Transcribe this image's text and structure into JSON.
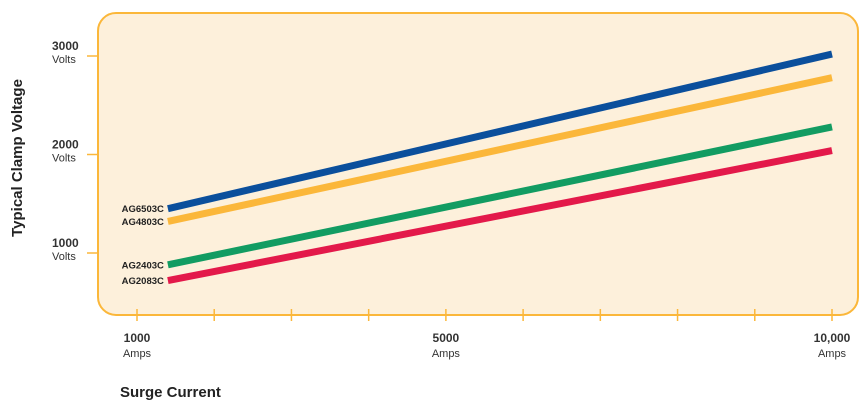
{
  "chart_data": {
    "type": "line",
    "xlabel": "Surge Current",
    "ylabel": "Typical Clamp Voltage",
    "xlim": [
      1000,
      10000
    ],
    "ylim": [
      500,
      3500
    ],
    "x_ticks": [
      {
        "value": 1000,
        "line1": "1000",
        "line2": "Amps"
      },
      {
        "value": 5000,
        "line1": "5000",
        "line2": "Amps"
      },
      {
        "value": 10000,
        "line1": "10,000",
        "line2": "Amps"
      }
    ],
    "x_minor_ticks": [
      2000,
      3000,
      4000,
      6000,
      7000,
      8000,
      9000
    ],
    "y_ticks": [
      {
        "value": 1000,
        "line1": "1000",
        "line2": "Volts"
      },
      {
        "value": 2000,
        "line1": "2000",
        "line2": "Volts"
      },
      {
        "value": 3000,
        "line1": "3000",
        "line2": "Volts"
      }
    ],
    "series": [
      {
        "name": "AG6503C",
        "color": "#0b4f9c",
        "x": [
          1400,
          10000
        ],
        "y": [
          1450,
          3020
        ]
      },
      {
        "name": "AG4803C",
        "color": "#fbb73a",
        "x": [
          1400,
          10000
        ],
        "y": [
          1320,
          2780
        ]
      },
      {
        "name": "AG2403C",
        "color": "#129c62",
        "x": [
          1400,
          10000
        ],
        "y": [
          880,
          2280
        ]
      },
      {
        "name": "AG2083C",
        "color": "#e3194a",
        "x": [
          1400,
          10000
        ],
        "y": [
          720,
          2040
        ]
      }
    ],
    "plot_background": "#fdf0db",
    "plot_border_color": "#fbb73a",
    "grid": false
  }
}
